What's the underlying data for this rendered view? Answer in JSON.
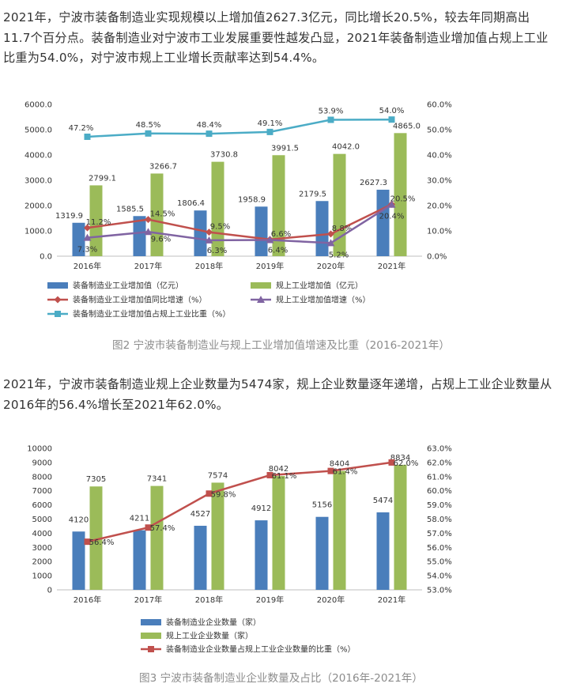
{
  "article": {
    "paragraph1": "2021年，宁波市装备制造业实现规模以上增加值2627.3亿元，同比增长20.5%，较去年同期高出11.7个百分点。装备制造业对宁波市工业发展重要性越发凸显，2021年装备制造业增加值占规上工业比重为54.0%，对宁波市规上工业增长贡献率达到54.4%。",
    "caption1": "图2 宁波市装备制造业与规上工业增加值增速及比重（2016-2021年）",
    "paragraph2": "2021年，宁波市装备制造业规上企业数量为5474家，规上企业数量逐年递增，占规上工业企业数量从2016年的56.4%增长至2021年62.0%。",
    "caption2": "图3 宁波市装备制造业企业数量及占比（2016年-2021年）"
  },
  "chart_data": [
    {
      "type": "bar",
      "categories": [
        "2016年",
        "2017年",
        "2018年",
        "2019年",
        "2020年",
        "2021年"
      ],
      "left_axis": {
        "ticks": [
          "0.0",
          "1000.0",
          "2000.0",
          "3000.0",
          "4000.0",
          "5000.0",
          "6000.0"
        ],
        "ylim": [
          0,
          6000
        ]
      },
      "right_axis": {
        "ticks": [
          "0.0%",
          "10.0%",
          "20.0%",
          "30.0%",
          "40.0%",
          "50.0%",
          "60.0%"
        ],
        "ylim": [
          0,
          60
        ]
      },
      "bars": [
        {
          "name": "装备制造业工业增加值（亿元）",
          "color": "#4a7ebb",
          "values": [
            1319.9,
            1585.5,
            1806.4,
            1958.9,
            2179.5,
            2627.3
          ],
          "labels": [
            "1319.9",
            "1585.5",
            "1806.4",
            "1958.9",
            "2179.5",
            "2627.3"
          ]
        },
        {
          "name": "规上工业增加值（亿元）",
          "color": "#9bbb59",
          "values": [
            2799.1,
            3266.7,
            3730.8,
            3991.5,
            4042.0,
            4865.0
          ],
          "labels": [
            "2799.1",
            "3266.7",
            "3730.8",
            "3991.5",
            "4042.0",
            "4865.0"
          ]
        }
      ],
      "lines": [
        {
          "name": "装备制造业工业增加值同比增速（%）",
          "color": "#c0504d",
          "marker": "diamond",
          "values": [
            11.2,
            14.5,
            9.5,
            6.6,
            8.8,
            20.5
          ],
          "labels": [
            "11.2%",
            "14.5%",
            "9.5%",
            "6.6%",
            "8.8%",
            "20.5%"
          ]
        },
        {
          "name": "规上工业增加值增速（%）",
          "color": "#8064a2",
          "marker": "triangle",
          "values": [
            7.3,
            9.6,
            6.3,
            6.4,
            5.2,
            20.4
          ],
          "labels": [
            "7.3%",
            "9.6%",
            "6.3%",
            "6.4%",
            "5.2%",
            "20.4%"
          ]
        },
        {
          "name": "装备制造业工业增加值占规上工业比重（%）",
          "color": "#4bacc6",
          "marker": "square",
          "values": [
            47.2,
            48.5,
            48.4,
            49.1,
            53.9,
            54.0
          ],
          "labels": [
            "47.2%",
            "48.5%",
            "48.4%",
            "49.1%",
            "53.9%",
            "54.0%"
          ]
        }
      ]
    },
    {
      "type": "bar",
      "categories": [
        "2016年",
        "2017年",
        "2018年",
        "2019年",
        "2020年",
        "2021年"
      ],
      "left_axis": {
        "ticks": [
          "0",
          "1000",
          "2000",
          "3000",
          "4000",
          "5000",
          "6000",
          "7000",
          "8000",
          "9000",
          "10000"
        ],
        "ylim": [
          0,
          10000
        ]
      },
      "right_axis": {
        "ticks": [
          "53.0%",
          "54.0%",
          "55.0%",
          "56.0%",
          "57.0%",
          "58.0%",
          "59.0%",
          "60.0%",
          "61.0%",
          "62.0%",
          "63.0%"
        ],
        "ylim": [
          53,
          63
        ]
      },
      "bars": [
        {
          "name": "装备制造业企业数量（家）",
          "color": "#4a7ebb",
          "values": [
            4120,
            4211,
            4527,
            4912,
            5156,
            5474
          ],
          "labels": [
            "4120",
            "4211",
            "4527",
            "4912",
            "5156",
            "5474"
          ]
        },
        {
          "name": "规上工业企业数量（家）",
          "color": "#9bbb59",
          "values": [
            7305,
            7341,
            7574,
            8042,
            8404,
            8834
          ],
          "labels": [
            "7305",
            "7341",
            "7574",
            "8042",
            "8404",
            "8834"
          ]
        }
      ],
      "lines": [
        {
          "name": "装备制造业企业数量占规上工业企业数量的比重（%）",
          "color": "#c0504d",
          "marker": "square",
          "values": [
            56.4,
            57.4,
            59.8,
            61.1,
            61.4,
            62.0
          ],
          "labels": [
            "56.4%",
            "57.4%",
            "59.8%",
            "61.1%",
            "61.4%",
            "62.0%"
          ]
        }
      ]
    }
  ]
}
